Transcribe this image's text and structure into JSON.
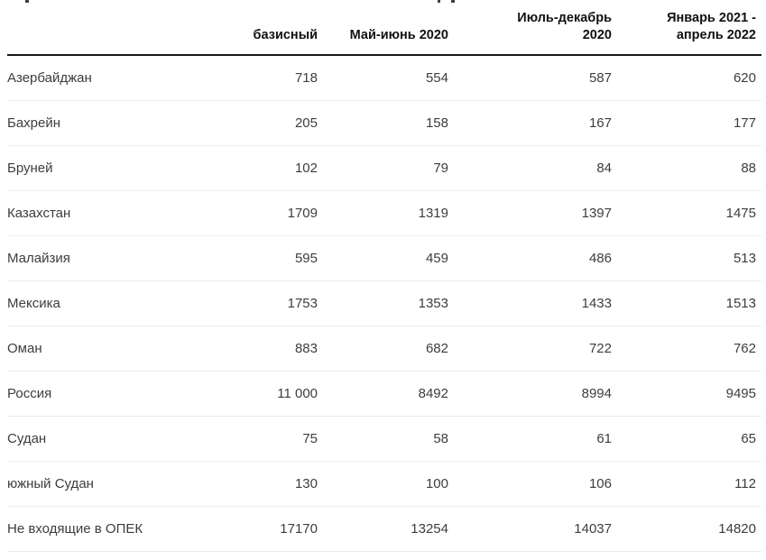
{
  "table": {
    "columns": [
      {
        "label": "базисный"
      },
      {
        "label": "Май-июнь 2020"
      },
      {
        "label": "Июль-декабрь\n2020"
      },
      {
        "label": "Январь 2021 -\nапрель 2022"
      }
    ],
    "rows": [
      {
        "label": "Азербайджан",
        "values": [
          "718",
          "554",
          "587",
          "620"
        ]
      },
      {
        "label": "Бахрейн",
        "values": [
          "205",
          "158",
          "167",
          "177"
        ]
      },
      {
        "label": "Бруней",
        "values": [
          "102",
          "79",
          "84",
          "88"
        ]
      },
      {
        "label": "Казахстан",
        "values": [
          "1709",
          "1319",
          "1397",
          "1475"
        ]
      },
      {
        "label": "Малайзия",
        "values": [
          "595",
          "459",
          "486",
          "513"
        ]
      },
      {
        "label": "Мексика",
        "values": [
          "1753",
          "1353",
          "1433",
          "1513"
        ]
      },
      {
        "label": "Оман",
        "values": [
          "883",
          "682",
          "722",
          "762"
        ]
      },
      {
        "label": "Россия",
        "values": [
          "11 000",
          "8492",
          "8994",
          "9495"
        ]
      },
      {
        "label": "Судан",
        "values": [
          "75",
          "58",
          "61",
          "65"
        ]
      },
      {
        "label": "южный Судан",
        "values": [
          "130",
          "100",
          "106",
          "112"
        ]
      },
      {
        "label": "Не входящие в ОПЕК",
        "values": [
          "17170",
          "13254",
          "14037",
          "14820"
        ]
      }
    ]
  },
  "chart_data": {
    "type": "table",
    "title": "",
    "columns": [
      "базисный",
      "Май-июнь 2020",
      "Июль-декабрь 2020",
      "Январь 2021 - апрель 2022"
    ],
    "categories": [
      "Азербайджан",
      "Бахрейн",
      "Бруней",
      "Казахстан",
      "Малайзия",
      "Мексика",
      "Оман",
      "Россия",
      "Судан",
      "южный Судан",
      "Не входящие в ОПЕК"
    ],
    "series": [
      {
        "name": "базисный",
        "values": [
          718,
          205,
          102,
          1709,
          595,
          1753,
          883,
          11000,
          75,
          130,
          17170
        ]
      },
      {
        "name": "Май-июнь 2020",
        "values": [
          554,
          158,
          79,
          1319,
          459,
          1353,
          682,
          8492,
          58,
          100,
          13254
        ]
      },
      {
        "name": "Июль-декабрь 2020",
        "values": [
          587,
          167,
          84,
          1397,
          486,
          1433,
          722,
          8994,
          61,
          106,
          14037
        ]
      },
      {
        "name": "Январь 2021 - апрель 2022",
        "values": [
          620,
          177,
          88,
          1475,
          513,
          1513,
          762,
          9495,
          65,
          112,
          14820
        ]
      }
    ]
  },
  "colors": {
    "background": "#ffffff",
    "header_text": "#111111",
    "body_text": "#3d3d3d",
    "header_rule": "#161616",
    "row_separator": "#ebebeb"
  }
}
